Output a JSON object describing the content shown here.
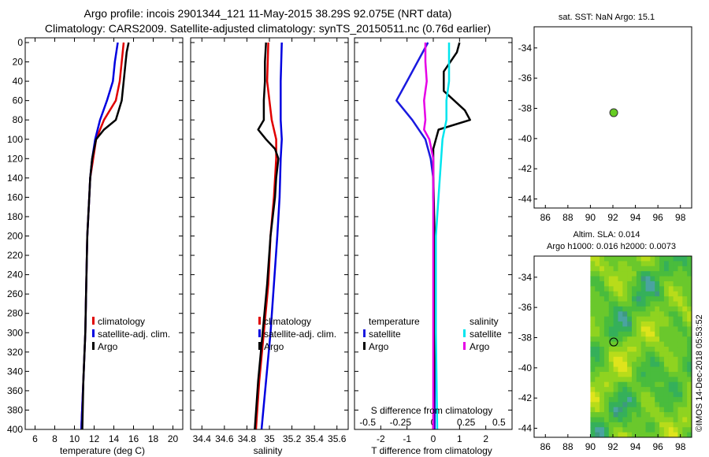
{
  "header": {
    "line1": "Argo profile: incois 2901344_121 11-May-2015 38.29S 92.075E (NRT data)",
    "line2": "Climatology: CARS2009. Satellite-adjusted climatology: synTS_20150511.nc (0.76d earlier)"
  },
  "timestamp": "©IMOS 14-Dec-2018 05:53:52",
  "colors": {
    "climatology": "#e00000",
    "satellite": "#0000e0",
    "argo": "#000000",
    "t_satellite": "#1a1adf",
    "s_argo": "#e600e6",
    "s_satellite": "#00e5ee",
    "dot": "#66cc22"
  },
  "chart_data": [
    {
      "id": "temperature",
      "type": "line",
      "xlabel": "temperature (deg C)",
      "ylabel": "",
      "xlim": [
        5,
        21
      ],
      "ylim": [
        400,
        0
      ],
      "xticks": [
        6,
        8,
        10,
        12,
        14,
        16,
        18,
        20
      ],
      "yticks": [
        0,
        20,
        40,
        60,
        80,
        100,
        120,
        140,
        160,
        180,
        200,
        220,
        240,
        260,
        280,
        300,
        320,
        340,
        360,
        380,
        400
      ],
      "legend": [
        "climatology",
        "satellite-adj. clim.",
        "Argo"
      ],
      "series": [
        {
          "name": "climatology",
          "color": "#e00000",
          "depth": [
            0,
            20,
            40,
            60,
            80,
            100,
            120,
            140,
            160,
            200,
            250,
            300,
            350,
            400
          ],
          "values": [
            15.0,
            14.8,
            14.6,
            14.2,
            13.0,
            12.2,
            11.9,
            11.6,
            11.5,
            11.3,
            11.2,
            11.1,
            10.9,
            10.7
          ]
        },
        {
          "name": "satellite-adj. clim.",
          "color": "#0000e0",
          "depth": [
            0,
            20,
            40,
            60,
            80,
            100,
            120,
            140,
            160,
            200,
            250,
            300,
            350,
            400
          ],
          "values": [
            14.4,
            14.1,
            13.9,
            13.3,
            12.6,
            12.1,
            11.8,
            11.6,
            11.5,
            11.3,
            11.2,
            11.1,
            10.9,
            10.7
          ]
        },
        {
          "name": "Argo",
          "color": "#000000",
          "depth": [
            0,
            10,
            20,
            40,
            60,
            80,
            90,
            100,
            120,
            140,
            160,
            200,
            250,
            300,
            350,
            400
          ],
          "values": [
            15.5,
            15.3,
            15.2,
            15.0,
            14.8,
            14.2,
            13.0,
            12.2,
            11.8,
            11.6,
            11.5,
            11.3,
            11.2,
            11.1,
            10.9,
            10.8
          ]
        }
      ]
    },
    {
      "id": "salinity",
      "type": "line",
      "xlabel": "salinity",
      "ylabel": "",
      "xlim": [
        34.3,
        35.7
      ],
      "ylim": [
        400,
        0
      ],
      "xticks": [
        34.4,
        34.6,
        34.8,
        35,
        35.2,
        35.4,
        35.6
      ],
      "yticks": [
        0,
        20,
        40,
        60,
        80,
        100,
        120,
        140,
        160,
        180,
        200,
        220,
        240,
        260,
        280,
        300,
        320,
        340,
        360,
        380,
        400
      ],
      "legend": [
        "climatology",
        "satellite-adj. clim.",
        "Argo"
      ],
      "series": [
        {
          "name": "climatology",
          "color": "#e00000",
          "depth": [
            0,
            40,
            80,
            100,
            120,
            160,
            200,
            250,
            300,
            350,
            400
          ],
          "values": [
            34.99,
            34.98,
            35.02,
            35.06,
            35.06,
            35.04,
            35.01,
            34.99,
            34.95,
            34.91,
            34.88
          ]
        },
        {
          "name": "satellite-adj. clim.",
          "color": "#0000e0",
          "depth": [
            0,
            40,
            80,
            100,
            120,
            160,
            200,
            250,
            300,
            350,
            400
          ],
          "values": [
            35.11,
            35.1,
            35.1,
            35.11,
            35.1,
            35.09,
            35.07,
            35.04,
            35.01,
            34.97,
            34.93
          ]
        },
        {
          "name": "Argo",
          "color": "#000000",
          "depth": [
            0,
            20,
            40,
            60,
            80,
            90,
            100,
            110,
            120,
            140,
            160,
            200,
            250,
            300,
            350,
            400
          ],
          "values": [
            34.97,
            34.96,
            34.96,
            34.95,
            34.95,
            34.9,
            34.97,
            35.05,
            35.08,
            35.06,
            35.05,
            35.01,
            34.98,
            34.94,
            34.9,
            34.87
          ]
        }
      ]
    },
    {
      "id": "difference",
      "type": "line",
      "xlabel": "T difference from climatology",
      "ylabel": "",
      "toplabel": "S difference from climatology",
      "xlim": [
        -3,
        3
      ],
      "ylim": [
        400,
        0
      ],
      "xticks": [
        -2,
        -1,
        0,
        1,
        2
      ],
      "xticklabels": [
        "-2",
        "-1",
        "0",
        "1",
        "2"
      ],
      "sticks": [
        -0.5,
        -0.25,
        0,
        0.25,
        0.5
      ],
      "sticklabels": [
        "-0.5",
        "-0.25",
        "0",
        "0.25",
        "0.5"
      ],
      "yticks": [
        0,
        20,
        40,
        60,
        80,
        100,
        120,
        140,
        160,
        180,
        200,
        220,
        240,
        260,
        280,
        300,
        320,
        340,
        360,
        380,
        400
      ],
      "legend_left_title": "temperature",
      "legend_left": [
        "satellite",
        "Argo"
      ],
      "legend_right_title": "salinity",
      "legend_right": [
        "satellite",
        "Argo"
      ],
      "series": [
        {
          "name": "T satellite",
          "color": "#1a1adf",
          "depth": [
            0,
            20,
            40,
            60,
            80,
            100,
            120,
            140,
            160,
            200,
            300,
            400
          ],
          "values": [
            -0.2,
            -0.6,
            -1.0,
            -1.4,
            -0.8,
            -0.3,
            -0.1,
            0.0,
            0.0,
            0.05,
            0.05,
            0.05
          ]
        },
        {
          "name": "T Argo",
          "color": "#000000",
          "depth": [
            0,
            10,
            30,
            50,
            70,
            80,
            90,
            100,
            110,
            140,
            200,
            300,
            400
          ],
          "values": [
            1.0,
            0.9,
            0.4,
            0.4,
            1.2,
            1.4,
            0.2,
            0.1,
            0.0,
            0.0,
            0.05,
            0.05,
            0.0
          ]
        },
        {
          "name": "S satellite",
          "color": "#00e5ee",
          "depth": [
            0,
            20,
            40,
            60,
            80,
            100,
            140,
            200,
            300,
            400
          ],
          "values": [
            0.12,
            0.12,
            0.12,
            0.1,
            0.1,
            0.07,
            0.05,
            0.02,
            0.02,
            0.03
          ]
        },
        {
          "name": "S Argo",
          "color": "#e600e6",
          "depth": [
            0,
            20,
            40,
            60,
            80,
            90,
            100,
            120,
            140,
            200,
            300,
            400
          ],
          "values": [
            -0.06,
            -0.06,
            -0.05,
            -0.07,
            -0.06,
            -0.07,
            -0.03,
            0.0,
            0.0,
            0.0,
            0.0,
            0.0
          ]
        }
      ]
    },
    {
      "id": "sst_map",
      "type": "scatter",
      "title": "sat. SST: NaN Argo: 15.1",
      "xlim": [
        85,
        99
      ],
      "ylim": [
        -44.6,
        -32.6
      ],
      "xticks": [
        86,
        88,
        90,
        92,
        94,
        96,
        98
      ],
      "yticks": [
        -34,
        -36,
        -38,
        -40,
        -42,
        -44
      ],
      "points": [
        {
          "lon": 92.075,
          "lat": -38.29
        }
      ]
    },
    {
      "id": "sla_map",
      "type": "heatmap",
      "title1": "Altim. SLA: 0.014",
      "title2": "Argo h1000: 0.016 h2000: 0.0073",
      "xlim": [
        85,
        99
      ],
      "ylim": [
        -44.6,
        -32.6
      ],
      "data_from_lon": 90,
      "xticks": [
        86,
        88,
        90,
        92,
        94,
        96,
        98
      ],
      "yticks": [
        -34,
        -36,
        -38,
        -40,
        -42,
        -44
      ],
      "points": [
        {
          "lon": 92.075,
          "lat": -38.29
        }
      ]
    }
  ]
}
